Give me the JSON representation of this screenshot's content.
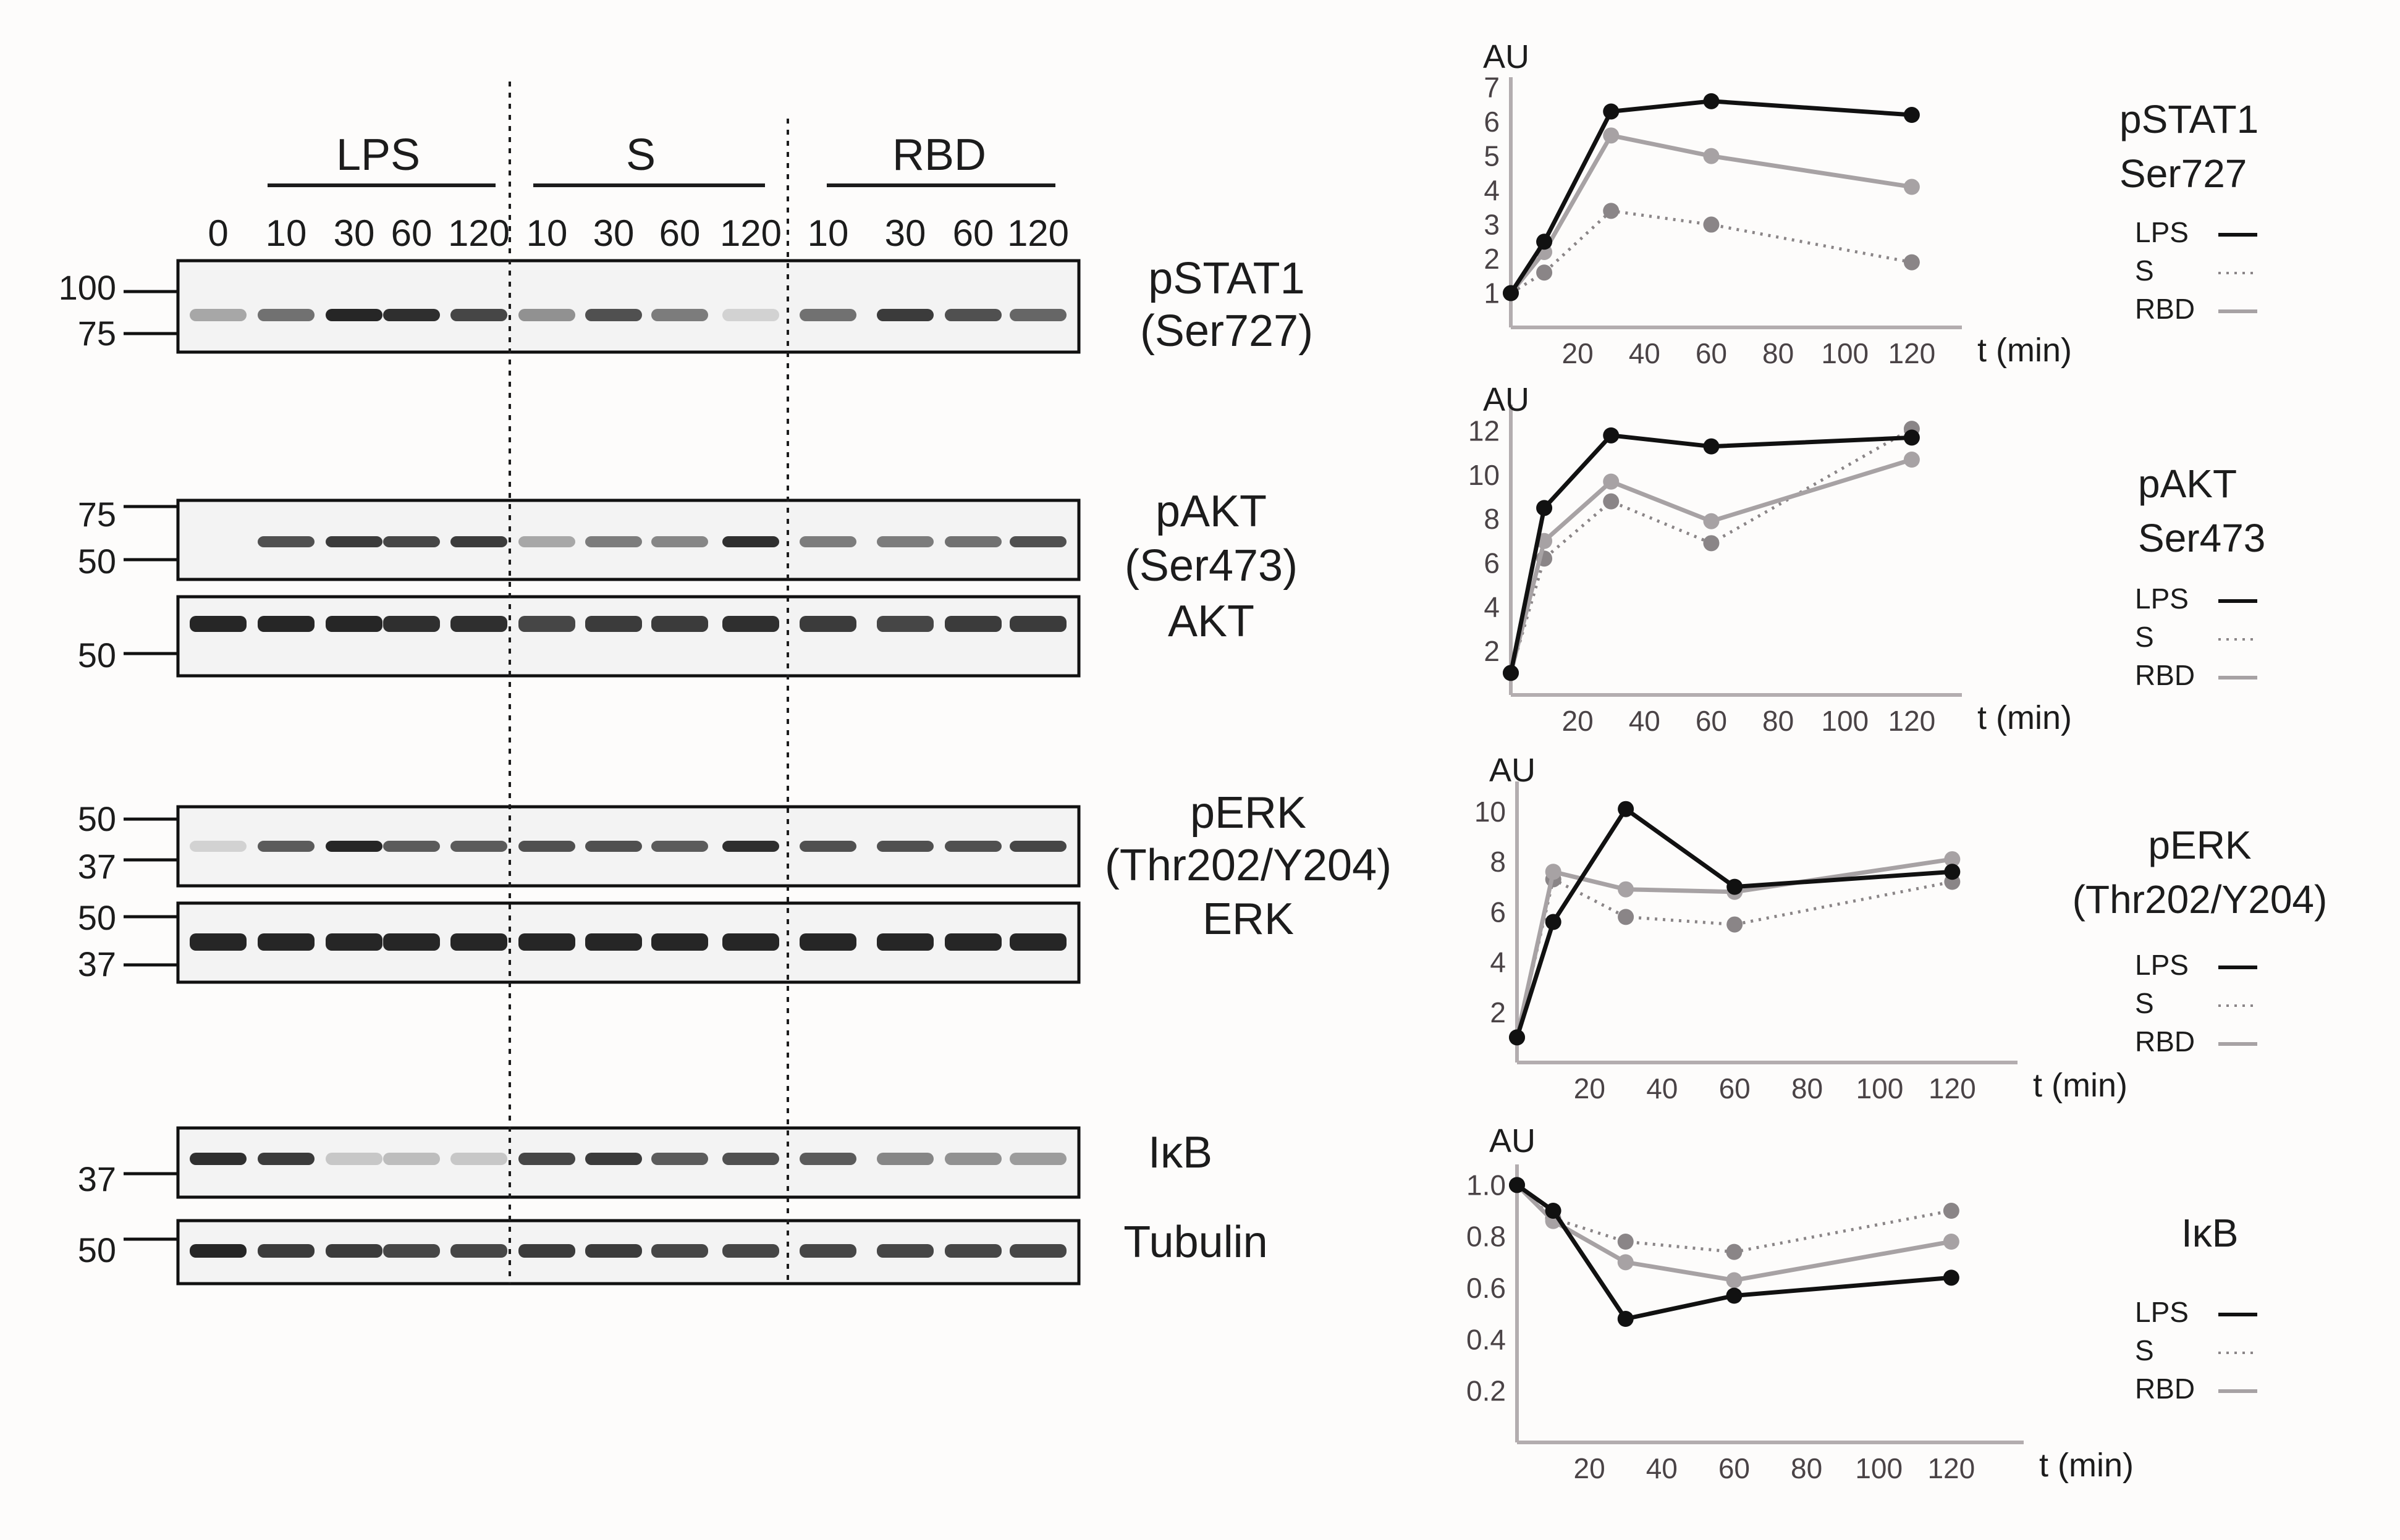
{
  "figure": {
    "lane_times": [
      "0",
      "10",
      "30",
      "60",
      "120",
      "10",
      "30",
      "60",
      "120",
      "10",
      "30",
      "60",
      "120"
    ],
    "groups": [
      {
        "label": "LPS"
      },
      {
        "label": "S"
      },
      {
        "label": "RBD"
      }
    ],
    "blots": [
      {
        "label_lines": [
          "pSTAT1",
          "(Ser727)"
        ],
        "markers": [
          "100",
          "75"
        ]
      },
      {
        "label_lines": [
          "pAKT",
          "(Ser473)"
        ],
        "markers": [
          "75",
          "50"
        ]
      },
      {
        "label_lines": [
          "AKT"
        ],
        "markers": [
          "50"
        ]
      },
      {
        "label_lines": [
          "pERK",
          "(Thr202/Y204)"
        ],
        "markers": [
          "50",
          "37"
        ]
      },
      {
        "label_lines": [
          "ERK"
        ],
        "markers": [
          "50",
          "37"
        ]
      },
      {
        "label_lines": [
          "IκB"
        ],
        "markers": [
          "37"
        ]
      },
      {
        "label_lines": [
          "Tubulin"
        ],
        "markers": [
          "50"
        ]
      }
    ],
    "band_intensity": {
      "pSTAT1": [
        0.35,
        0.6,
        0.95,
        0.9,
        0.8,
        0.45,
        0.75,
        0.55,
        0.15,
        0.6,
        0.85,
        0.75,
        0.65
      ],
      "pAKT": [
        0.0,
        0.75,
        0.85,
        0.8,
        0.85,
        0.35,
        0.55,
        0.5,
        0.9,
        0.55,
        0.55,
        0.6,
        0.75
      ],
      "AKT": [
        0.95,
        0.95,
        0.95,
        0.9,
        0.9,
        0.8,
        0.85,
        0.85,
        0.9,
        0.85,
        0.8,
        0.85,
        0.85
      ],
      "pERK": [
        0.15,
        0.7,
        0.95,
        0.7,
        0.7,
        0.75,
        0.75,
        0.7,
        0.9,
        0.75,
        0.75,
        0.75,
        0.8
      ],
      "ERK": [
        0.95,
        0.95,
        0.95,
        0.95,
        0.95,
        0.95,
        0.95,
        0.95,
        0.95,
        0.95,
        0.95,
        0.95,
        0.95
      ],
      "IkB": [
        0.9,
        0.85,
        0.2,
        0.25,
        0.2,
        0.8,
        0.85,
        0.7,
        0.75,
        0.7,
        0.5,
        0.45,
        0.4
      ],
      "Tubulin": [
        0.95,
        0.85,
        0.85,
        0.8,
        0.8,
        0.85,
        0.85,
        0.8,
        0.8,
        0.8,
        0.8,
        0.8,
        0.8
      ]
    }
  },
  "colors": {
    "LPS": "#111111",
    "S": "#8a8587",
    "RBD": "#a7a2a4",
    "axis": "#b3adaf",
    "blot_bg": "#f3f3f3",
    "band": "#1a1a1a"
  },
  "chart_data": [
    {
      "type": "line",
      "title_lines": [
        "pSTAT1",
        "Ser727"
      ],
      "ylabel": "AU",
      "xlabel": "t (min)",
      "xticks": [
        "20",
        "40",
        "60",
        "80",
        "100",
        "120"
      ],
      "yticks": [
        "1",
        "2",
        "3",
        "4",
        "5",
        "6",
        "7"
      ],
      "xlim": [
        0,
        135
      ],
      "ylim": [
        0,
        7.3
      ],
      "series": [
        {
          "name": "LPS",
          "style": "solid-black",
          "x": [
            0,
            10,
            30,
            60,
            120
          ],
          "y": [
            1,
            2.5,
            6.3,
            6.6,
            6.2
          ]
        },
        {
          "name": "S",
          "style": "dotted-gray",
          "x": [
            0,
            10,
            30,
            60,
            120
          ],
          "y": [
            1,
            1.6,
            3.4,
            3.0,
            1.9
          ]
        },
        {
          "name": "RBD",
          "style": "solid-gray",
          "x": [
            0,
            10,
            30,
            60,
            120
          ],
          "y": [
            1,
            2.2,
            5.6,
            5.0,
            4.1
          ]
        }
      ],
      "legend": [
        "LPS",
        "S",
        "RBD"
      ]
    },
    {
      "type": "line",
      "title_lines": [
        "pAKT",
        "Ser473"
      ],
      "ylabel": "AU",
      "xlabel": "t (min)",
      "xticks": [
        "20",
        "40",
        "60",
        "80",
        "100",
        "120"
      ],
      "yticks": [
        "2",
        "4",
        "6",
        "8",
        "10",
        "12"
      ],
      "xlim": [
        0,
        135
      ],
      "ylim": [
        0,
        13.2
      ],
      "series": [
        {
          "name": "LPS",
          "style": "solid-black",
          "x": [
            0,
            10,
            30,
            60,
            120
          ],
          "y": [
            1,
            8.5,
            11.8,
            11.3,
            11.7
          ]
        },
        {
          "name": "S",
          "style": "dotted-gray",
          "x": [
            0,
            10,
            30,
            60,
            120
          ],
          "y": [
            1,
            6.2,
            8.8,
            6.9,
            12.1
          ]
        },
        {
          "name": "RBD",
          "style": "solid-gray",
          "x": [
            0,
            10,
            30,
            60,
            120
          ],
          "y": [
            1,
            7.0,
            9.7,
            7.9,
            10.7
          ]
        }
      ],
      "legend": [
        "LPS",
        "S",
        "RBD"
      ]
    },
    {
      "type": "line",
      "title_lines": [
        "pERK",
        "(Thr202/Y204)"
      ],
      "ylabel": "AU",
      "xlabel": "t (min)",
      "xticks": [
        "20",
        "40",
        "60",
        "80",
        "100",
        "120"
      ],
      "yticks": [
        "2",
        "4",
        "6",
        "8",
        "10"
      ],
      "xlim": [
        0,
        138
      ],
      "ylim": [
        0,
        11.2
      ],
      "series": [
        {
          "name": "LPS",
          "style": "solid-black",
          "x": [
            0,
            10,
            30,
            60,
            120
          ],
          "y": [
            1,
            5.6,
            10.1,
            7.0,
            7.6
          ]
        },
        {
          "name": "S",
          "style": "dotted-gray",
          "x": [
            0,
            10,
            30,
            60,
            120
          ],
          "y": [
            1,
            7.3,
            5.8,
            5.5,
            7.2
          ]
        },
        {
          "name": "RBD",
          "style": "solid-gray",
          "x": [
            0,
            10,
            30,
            60,
            120
          ],
          "y": [
            1,
            7.6,
            6.9,
            6.8,
            8.1
          ]
        }
      ],
      "legend": [
        "LPS",
        "S",
        "RBD"
      ]
    },
    {
      "type": "line",
      "title_lines": [
        "IκB"
      ],
      "ylabel": "AU",
      "xlabel": "t (min)",
      "xticks": [
        "20",
        "40",
        "60",
        "80",
        "100",
        "120"
      ],
      "yticks": [
        "0.2",
        "0.4",
        "0.6",
        "0.8",
        "1.0"
      ],
      "xlim": [
        0,
        140
      ],
      "ylim": [
        0,
        1.08
      ],
      "series": [
        {
          "name": "LPS",
          "style": "solid-black",
          "x": [
            0,
            10,
            30,
            60,
            120
          ],
          "y": [
            1.0,
            0.9,
            0.48,
            0.57,
            0.64
          ]
        },
        {
          "name": "S",
          "style": "dotted-gray",
          "x": [
            0,
            10,
            30,
            60,
            120
          ],
          "y": [
            1.0,
            0.87,
            0.78,
            0.74,
            0.9
          ]
        },
        {
          "name": "RBD",
          "style": "solid-gray",
          "x": [
            0,
            10,
            30,
            60,
            120
          ],
          "y": [
            1.0,
            0.86,
            0.7,
            0.63,
            0.78
          ]
        }
      ],
      "legend": [
        "LPS",
        "S",
        "RBD"
      ]
    }
  ]
}
